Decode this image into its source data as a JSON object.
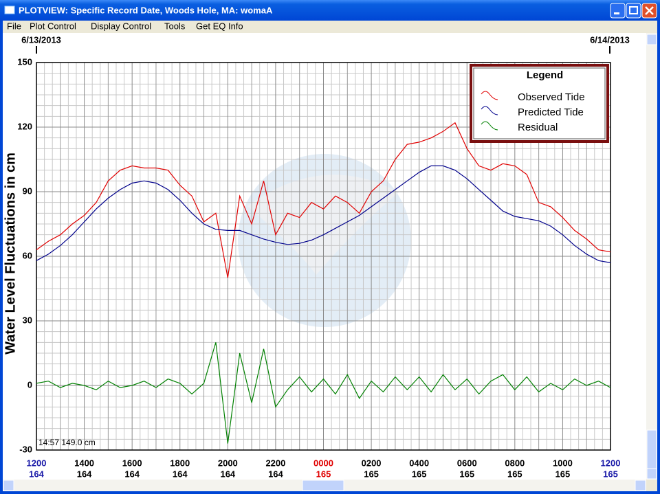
{
  "window": {
    "title": "PLOTVIEW: Specific Record Date, Woods Hole, MA: womaA",
    "menu": [
      "File",
      "Plot Control",
      "Display Control",
      "Tools",
      "Get EQ Info"
    ]
  },
  "chart_data": {
    "type": "line",
    "date_start": "6/13/2013",
    "date_end": "6/14/2013",
    "ylabel": "Water Level Fluctuations in cm",
    "status": "14:57 149.0 cm",
    "legend_title": "Legend",
    "legend_position": "upper right",
    "x": [
      0,
      0.5,
      1,
      1.5,
      2,
      2.5,
      3,
      3.5,
      4,
      4.5,
      5,
      5.5,
      6,
      6.5,
      7,
      7.5,
      8,
      8.5,
      9,
      9.5,
      10,
      10.5,
      11,
      11.5,
      12,
      12.5,
      13,
      13.5,
      14,
      14.5,
      15,
      15.5,
      16,
      16.5,
      17,
      17.5,
      18,
      18.5,
      19,
      19.5,
      20,
      20.5,
      21,
      21.5,
      22,
      22.5,
      23,
      23.5,
      24
    ],
    "xlim": [
      0,
      24
    ],
    "xticks": [
      {
        "value": 0,
        "label": "1200"
      },
      {
        "value": 2,
        "label": "1400"
      },
      {
        "value": 4,
        "label": "1600"
      },
      {
        "value": 6,
        "label": "1800"
      },
      {
        "value": 8,
        "label": "2000"
      },
      {
        "value": 10,
        "label": "2200"
      },
      {
        "value": 12,
        "label": "0000"
      },
      {
        "value": 14,
        "label": "0200"
      },
      {
        "value": 16,
        "label": "0400"
      },
      {
        "value": 18,
        "label": "0600"
      },
      {
        "value": 20,
        "label": "0800"
      },
      {
        "value": 22,
        "label": "1000"
      },
      {
        "value": 24,
        "label": "1200"
      }
    ],
    "xtick_days": [
      "164",
      "164",
      "164",
      "164",
      "164",
      "164",
      "165",
      "165",
      "165",
      "165",
      "165",
      "165",
      "165"
    ],
    "xtick_colors": [
      "#1a1aa8",
      "#000000",
      "#000000",
      "#000000",
      "#000000",
      "#000000",
      "#e00000",
      "#000000",
      "#000000",
      "#000000",
      "#000000",
      "#000000",
      "#1a1aa8"
    ],
    "ylim": [
      -30,
      150
    ],
    "yticks": [
      -30,
      0,
      30,
      60,
      90,
      120,
      150
    ],
    "grid": true,
    "series": [
      {
        "name": "Observed Tide",
        "color": "#e00000",
        "values": [
          63,
          67,
          70,
          75,
          79,
          85,
          95,
          100,
          102,
          101,
          101,
          100,
          93,
          88,
          76,
          80,
          50,
          88,
          75,
          95,
          70,
          80,
          78,
          85,
          82,
          88,
          85,
          80,
          90,
          95,
          105,
          112,
          113,
          115,
          118,
          122,
          110,
          102,
          100,
          103,
          102,
          98,
          85,
          83,
          78,
          72,
          68,
          63,
          62
        ]
      },
      {
        "name": "Predicted Tide",
        "color": "#00008b",
        "values": [
          58,
          61,
          65,
          70,
          76,
          82,
          87,
          91,
          94,
          95,
          94,
          91,
          86,
          80,
          75,
          72.5,
          72,
          72,
          70,
          68,
          66.5,
          65.5,
          66,
          67.5,
          70,
          73,
          76,
          79,
          83,
          87,
          91,
          95,
          99,
          102,
          102,
          100,
          96,
          91,
          86,
          81,
          78.5,
          77.5,
          76.5,
          74,
          70,
          65,
          61,
          58,
          57
        ]
      },
      {
        "name": "Residual",
        "color": "#008000",
        "values": [
          1,
          2,
          -1,
          1,
          0,
          -2,
          2,
          -1,
          0,
          2,
          -1,
          3,
          1,
          -4,
          1,
          20,
          -27,
          15,
          -8,
          17,
          -10,
          -2,
          4,
          -3,
          3,
          -4,
          5,
          -6,
          2,
          -3,
          4,
          -2,
          4,
          -3,
          5,
          -2,
          3,
          -4,
          2,
          5,
          -2,
          4,
          -3,
          1,
          -2,
          3,
          0,
          2,
          -1
        ]
      }
    ]
  }
}
